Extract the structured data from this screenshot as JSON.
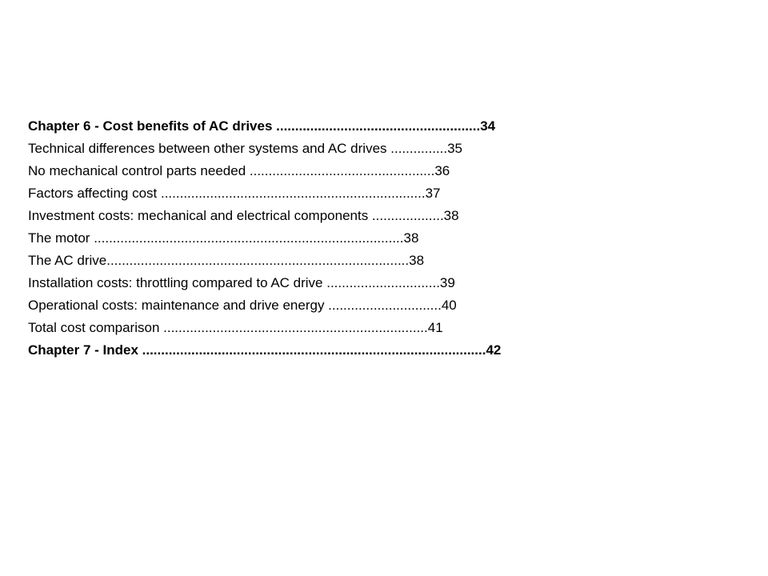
{
  "toc": {
    "entries": [
      {
        "text": "Chapter 6 - Cost benefits of AC drives ......................................................34",
        "bold": true
      },
      {
        "text": "Technical differences between other systems and AC drives ...............35",
        "bold": false
      },
      {
        "text": "No mechanical control parts needed .................................................36",
        "bold": false
      },
      {
        "text": "Factors affecting cost ......................................................................37",
        "bold": false
      },
      {
        "text": "Investment costs: mechanical and electrical components ...................38",
        "bold": false
      },
      {
        "text": "The motor ..................................................................................38",
        "bold": false
      },
      {
        "text": "The AC drive................................................................................38",
        "bold": false
      },
      {
        "text": "Installation costs: throttling compared to AC drive ..............................39",
        "bold": false
      },
      {
        "text": "Operational costs: maintenance and drive energy ..............................40",
        "bold": false
      },
      {
        "text": "Total cost comparison ......................................................................41",
        "bold": false
      },
      {
        "text": "Chapter 7 - Index ...........................................................................................42",
        "bold": true
      }
    ]
  }
}
